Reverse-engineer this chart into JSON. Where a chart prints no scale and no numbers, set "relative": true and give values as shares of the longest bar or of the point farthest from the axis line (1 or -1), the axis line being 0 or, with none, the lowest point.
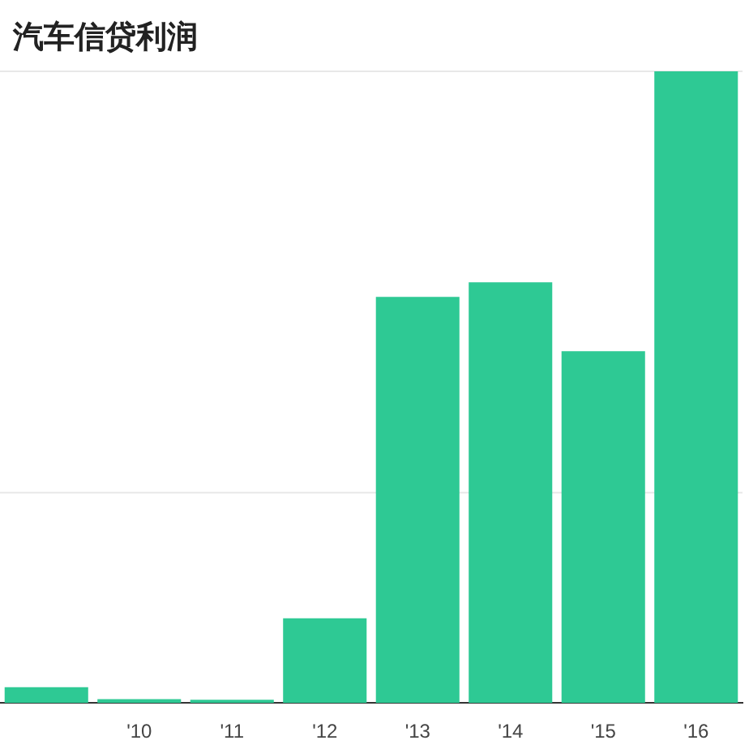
{
  "chart_data": {
    "type": "bar",
    "title": "汽车信贷利润",
    "categories": [
      null,
      "'10",
      "'11",
      "'12",
      "'13",
      "'14",
      "'15",
      "'16"
    ],
    "values": [
      0.025,
      0.006,
      0.005,
      0.134,
      0.643,
      0.666,
      0.557,
      1
    ],
    "color": "#2ec994",
    "relative": true,
    "ref_lines": [
      {
        "axis": "y",
        "value": 0.333,
        "color": "#e8e8e8"
      },
      {
        "axis": "y",
        "value": 1,
        "color": "#e8e8e8"
      }
    ]
  }
}
